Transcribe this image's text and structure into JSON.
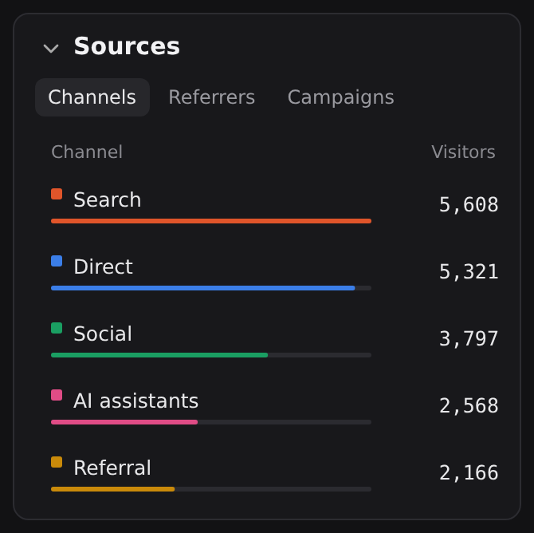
{
  "chart_data": {
    "type": "bar",
    "orientation": "horizontal",
    "title": "Sources",
    "annotations": [
      "Channels",
      "Referrers",
      "Campaigns"
    ],
    "ylabel": "Channel",
    "xlabel": "Visitors",
    "categories": [
      "Search",
      "Direct",
      "Social",
      "AI assistants",
      "Referral"
    ],
    "values": [
      5608,
      5321,
      3797,
      2568,
      2166
    ],
    "value_labels": [
      "5,608",
      "5,321",
      "3,797",
      "2,568",
      "2,166"
    ],
    "colors": [
      "#e0552a",
      "#3b7ee8",
      "#1a9e62",
      "#e04c86",
      "#c98a0a"
    ],
    "grid": false,
    "legend": false
  }
}
